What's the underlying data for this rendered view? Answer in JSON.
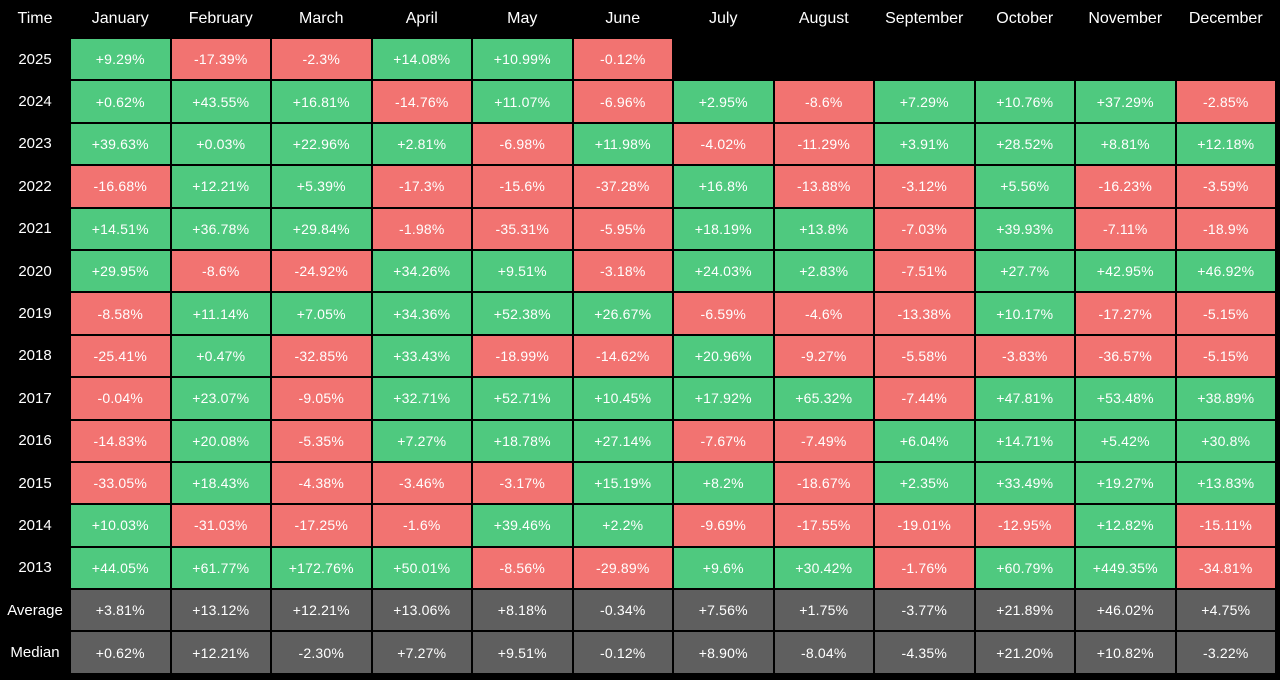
{
  "chart_data": {
    "type": "heatmap",
    "corner_label": "Time",
    "columns": [
      "January",
      "February",
      "March",
      "April",
      "May",
      "June",
      "July",
      "August",
      "September",
      "October",
      "November",
      "December"
    ],
    "rows": [
      {
        "label": "2025",
        "kind": "year",
        "values": [
          "+9.29%",
          "-17.39%",
          "-2.3%",
          "+14.08%",
          "+10.99%",
          "-0.12%",
          "",
          "",
          "",
          "",
          "",
          ""
        ]
      },
      {
        "label": "2024",
        "kind": "year",
        "values": [
          "+0.62%",
          "+43.55%",
          "+16.81%",
          "-14.76%",
          "+11.07%",
          "-6.96%",
          "+2.95%",
          "-8.6%",
          "+7.29%",
          "+10.76%",
          "+37.29%",
          "-2.85%"
        ]
      },
      {
        "label": "2023",
        "kind": "year",
        "values": [
          "+39.63%",
          "+0.03%",
          "+22.96%",
          "+2.81%",
          "-6.98%",
          "+11.98%",
          "-4.02%",
          "-11.29%",
          "+3.91%",
          "+28.52%",
          "+8.81%",
          "+12.18%"
        ]
      },
      {
        "label": "2022",
        "kind": "year",
        "values": [
          "-16.68%",
          "+12.21%",
          "+5.39%",
          "-17.3%",
          "-15.6%",
          "-37.28%",
          "+16.8%",
          "-13.88%",
          "-3.12%",
          "+5.56%",
          "-16.23%",
          "-3.59%"
        ]
      },
      {
        "label": "2021",
        "kind": "year",
        "values": [
          "+14.51%",
          "+36.78%",
          "+29.84%",
          "-1.98%",
          "-35.31%",
          "-5.95%",
          "+18.19%",
          "+13.8%",
          "-7.03%",
          "+39.93%",
          "-7.11%",
          "-18.9%"
        ]
      },
      {
        "label": "2020",
        "kind": "year",
        "values": [
          "+29.95%",
          "-8.6%",
          "-24.92%",
          "+34.26%",
          "+9.51%",
          "-3.18%",
          "+24.03%",
          "+2.83%",
          "-7.51%",
          "+27.7%",
          "+42.95%",
          "+46.92%"
        ]
      },
      {
        "label": "2019",
        "kind": "year",
        "values": [
          "-8.58%",
          "+11.14%",
          "+7.05%",
          "+34.36%",
          "+52.38%",
          "+26.67%",
          "-6.59%",
          "-4.6%",
          "-13.38%",
          "+10.17%",
          "-17.27%",
          "-5.15%"
        ]
      },
      {
        "label": "2018",
        "kind": "year",
        "values": [
          "-25.41%",
          "+0.47%",
          "-32.85%",
          "+33.43%",
          "-18.99%",
          "-14.62%",
          "+20.96%",
          "-9.27%",
          "-5.58%",
          "-3.83%",
          "-36.57%",
          "-5.15%"
        ]
      },
      {
        "label": "2017",
        "kind": "year",
        "values": [
          "-0.04%",
          "+23.07%",
          "-9.05%",
          "+32.71%",
          "+52.71%",
          "+10.45%",
          "+17.92%",
          "+65.32%",
          "-7.44%",
          "+47.81%",
          "+53.48%",
          "+38.89%"
        ]
      },
      {
        "label": "2016",
        "kind": "year",
        "values": [
          "-14.83%",
          "+20.08%",
          "-5.35%",
          "+7.27%",
          "+18.78%",
          "+27.14%",
          "-7.67%",
          "-7.49%",
          "+6.04%",
          "+14.71%",
          "+5.42%",
          "+30.8%"
        ]
      },
      {
        "label": "2015",
        "kind": "year",
        "values": [
          "-33.05%",
          "+18.43%",
          "-4.38%",
          "-3.46%",
          "-3.17%",
          "+15.19%",
          "+8.2%",
          "-18.67%",
          "+2.35%",
          "+33.49%",
          "+19.27%",
          "+13.83%"
        ]
      },
      {
        "label": "2014",
        "kind": "year",
        "values": [
          "+10.03%",
          "-31.03%",
          "-17.25%",
          "-1.6%",
          "+39.46%",
          "+2.2%",
          "-9.69%",
          "-17.55%",
          "-19.01%",
          "-12.95%",
          "+12.82%",
          "-15.11%"
        ]
      },
      {
        "label": "2013",
        "kind": "year",
        "values": [
          "+44.05%",
          "+61.77%",
          "+172.76%",
          "+50.01%",
          "-8.56%",
          "-29.89%",
          "+9.6%",
          "+30.42%",
          "-1.76%",
          "+60.79%",
          "+449.35%",
          "-34.81%"
        ]
      },
      {
        "label": "Average",
        "kind": "stat",
        "values": [
          "+3.81%",
          "+13.12%",
          "+12.21%",
          "+13.06%",
          "+8.18%",
          "-0.34%",
          "+7.56%",
          "+1.75%",
          "-3.77%",
          "+21.89%",
          "+46.02%",
          "+4.75%"
        ]
      },
      {
        "label": "Median",
        "kind": "stat",
        "values": [
          "+0.62%",
          "+12.21%",
          "-2.30%",
          "+7.27%",
          "+9.51%",
          "-0.12%",
          "+8.90%",
          "-8.04%",
          "-4.35%",
          "+21.20%",
          "+10.82%",
          "-3.22%"
        ]
      }
    ],
    "colors": {
      "positive": "#4fc97f",
      "negative": "#f27371",
      "stat": "#5f5f5f",
      "background": "#000000",
      "text": "#ffffff"
    }
  }
}
